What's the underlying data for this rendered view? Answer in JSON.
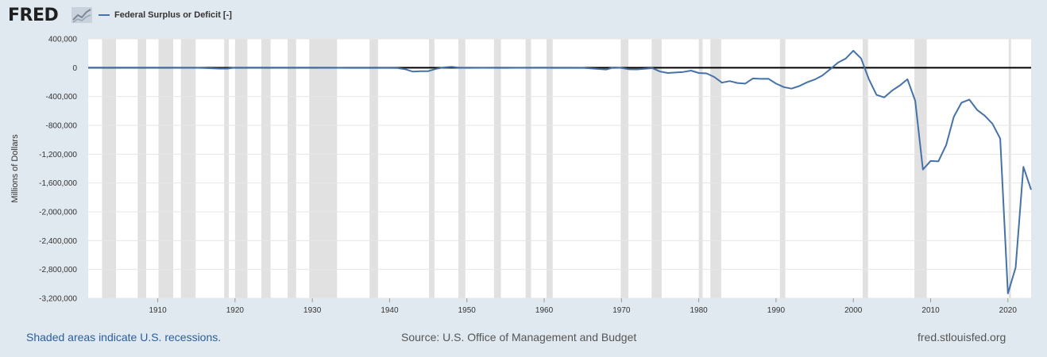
{
  "header": {
    "logo_text": "FRED",
    "logo_icon": "chart-line-icon",
    "legend_label": "Federal Surplus or Deficit [-]",
    "series_color": "#4572a7"
  },
  "footer": {
    "recession_note": "Shaded areas indicate U.S. recessions.",
    "source": "Source: U.S. Office of Management and Budget",
    "site": "fred.stlouisfed.org"
  },
  "chart_data": {
    "type": "line",
    "ylabel": "Millions of Dollars",
    "xlabel": "",
    "xlim": [
      1901,
      2023
    ],
    "ylim": [
      -3200000,
      400000
    ],
    "yticks": [
      400000,
      0,
      -400000,
      -800000,
      -1200000,
      -1600000,
      -2000000,
      -2400000,
      -2800000,
      -3200000
    ],
    "ytick_labels": [
      "400,000",
      "0",
      "-400,000",
      "-800,000",
      "-1,200,000",
      "-1,600,000",
      "-2,000,000",
      "-2,400,000",
      "-2,800,000",
      "-3,200,000"
    ],
    "xticks": [
      1910,
      1920,
      1930,
      1940,
      1950,
      1960,
      1970,
      1980,
      1990,
      2000,
      2010,
      2020
    ],
    "xtick_labels": [
      "1910",
      "1920",
      "1930",
      "1940",
      "1950",
      "1960",
      "1970",
      "1980",
      "1990",
      "2000",
      "2010",
      "2020"
    ],
    "grid": true,
    "zero_line": true,
    "recession_color": "#e1e1e1",
    "recessions": [
      [
        1902.8,
        1904.6
      ],
      [
        1907.4,
        1908.5
      ],
      [
        1910.1,
        1912.0
      ],
      [
        1913.0,
        1914.9
      ],
      [
        1918.6,
        1919.2
      ],
      [
        1920.0,
        1921.6
      ],
      [
        1923.4,
        1924.6
      ],
      [
        1926.8,
        1927.9
      ],
      [
        1929.6,
        1933.2
      ],
      [
        1937.4,
        1938.5
      ],
      [
        1945.1,
        1945.8
      ],
      [
        1948.9,
        1949.8
      ],
      [
        1953.5,
        1954.4
      ],
      [
        1957.6,
        1958.3
      ],
      [
        1960.3,
        1961.1
      ],
      [
        1969.9,
        1970.9
      ],
      [
        1973.9,
        1975.2
      ],
      [
        1980.0,
        1980.5
      ],
      [
        1981.5,
        1982.9
      ],
      [
        1990.5,
        1991.2
      ],
      [
        2001.2,
        2001.9
      ],
      [
        2007.9,
        2009.5
      ],
      [
        2020.1,
        2020.4
      ]
    ],
    "series": [
      {
        "x": [
          1901,
          1905,
          1910,
          1915,
          1918,
          1919,
          1920,
          1925,
          1930,
          1935,
          1940,
          1941,
          1942,
          1943,
          1944,
          1945,
          1946,
          1947,
          1948,
          1949,
          1950,
          1952,
          1955,
          1960,
          1961,
          1965,
          1968,
          1969,
          1970,
          1971,
          1972,
          1974,
          1975,
          1976,
          1978,
          1979,
          1980,
          1981,
          1982,
          1983,
          1984,
          1985,
          1986,
          1987,
          1988,
          1989,
          1990,
          1991,
          1992,
          1993,
          1994,
          1995,
          1996,
          1997,
          1998,
          1999,
          2000,
          2001,
          2002,
          2003,
          2004,
          2005,
          2006,
          2007,
          2008,
          2009,
          2010,
          2011,
          2012,
          2013,
          2014,
          2015,
          2016,
          2017,
          2018,
          2019,
          2020,
          2021,
          2022,
          2023
        ],
        "y": [
          0,
          0,
          0,
          -1000,
          -13000,
          -13000,
          290,
          700,
          700,
          -2800,
          -2900,
          -4900,
          -20500,
          -54600,
          -47600,
          -47600,
          -15900,
          4000,
          11800,
          600,
          -3100,
          -1500,
          -3000,
          300,
          -3300,
          -1400,
          -25200,
          3200,
          -2800,
          -23000,
          -23400,
          -6100,
          -53200,
          -73700,
          -59200,
          -40700,
          -73800,
          -79000,
          -128000,
          -207800,
          -185400,
          -212300,
          -221200,
          -149700,
          -155200,
          -152600,
          -221000,
          -269200,
          -290300,
          -255100,
          -203200,
          -164000,
          -107400,
          -21900,
          69300,
          125600,
          236200,
          128200,
          -157800,
          -377600,
          -412700,
          -318300,
          -248200,
          -160700,
          -458600,
          -1412700,
          -1294400,
          -1299600,
          -1076600,
          -679800,
          -484600,
          -442000,
          -584700,
          -665400,
          -779100,
          -983600,
          -3132500,
          -2775300,
          -1375900,
          -1694000
        ]
      }
    ]
  }
}
